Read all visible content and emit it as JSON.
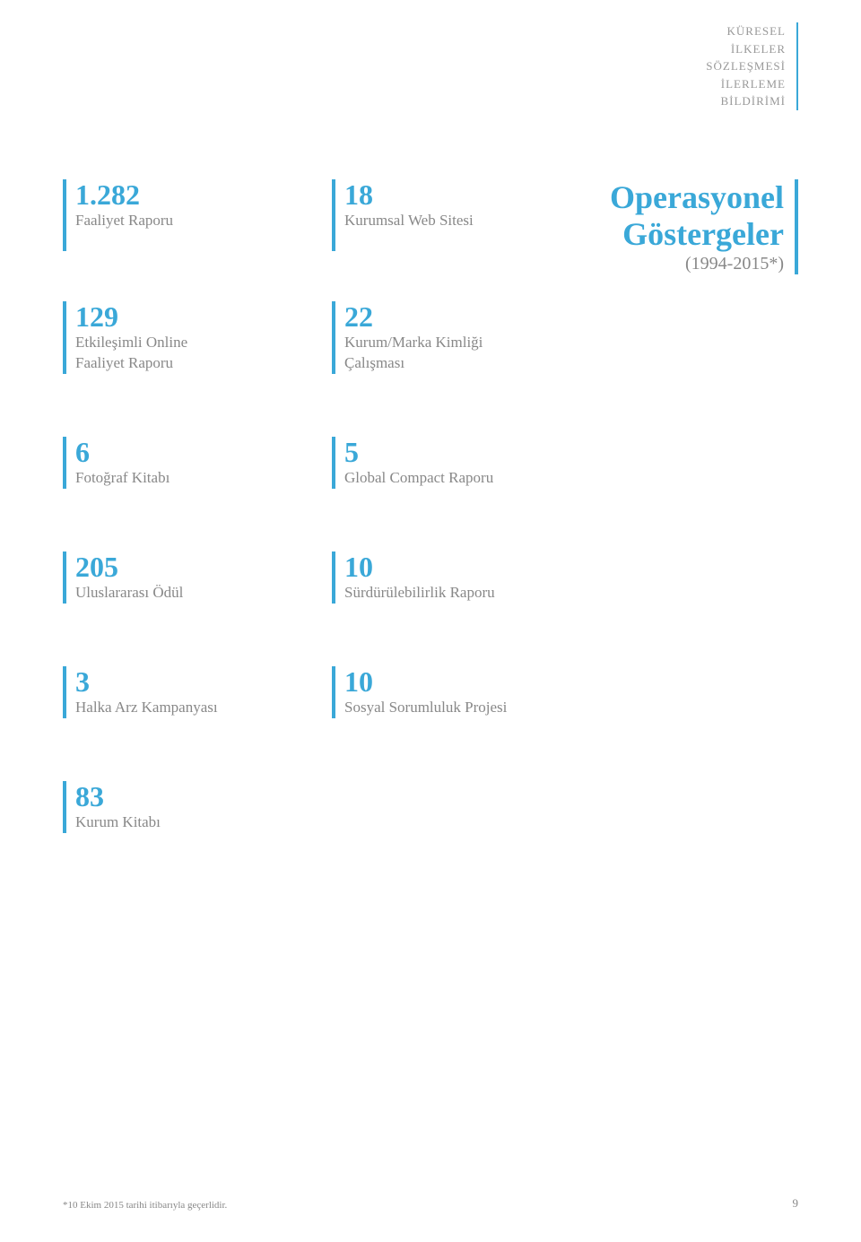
{
  "colors": {
    "accent": "#3aa8d8",
    "text_muted": "#999999",
    "text_label": "#888888"
  },
  "header": {
    "line1": "KÜRESEL",
    "line2": "İLKELER",
    "line3": "SÖZLEŞMESİ",
    "line4": "İLERLEME",
    "line5": "BİLDİRİMİ"
  },
  "title": {
    "line1": "Operasyonel",
    "line2": "Göstergeler",
    "sub": "(1994-2015*)"
  },
  "stats": {
    "r1c1_num": "1.282",
    "r1c1_label": "Faaliyet Raporu",
    "r1c2_num": "18",
    "r1c2_label": "Kurumsal Web Sitesi",
    "r2c1_num": "129",
    "r2c1_label1": "Etkileşimli Online",
    "r2c1_label2": "Faaliyet Raporu",
    "r2c2_num": "22",
    "r2c2_label1": "Kurum/Marka Kimliği",
    "r2c2_label2": "Çalışması",
    "r3c1_num": "6",
    "r3c1_label": "Fotoğraf Kitabı",
    "r3c2_num": "5",
    "r3c2_label": "Global Compact Raporu",
    "r4c1_num": "205",
    "r4c1_label": "Uluslararası Ödül",
    "r4c2_num": "10",
    "r4c2_label": "Sürdürülebilirlik Raporu",
    "r5c1_num": "3",
    "r5c1_label": "Halka Arz Kampanyası",
    "r5c2_num": "10",
    "r5c2_label": "Sosyal Sorumluluk Projesi",
    "r6c1_num": "83",
    "r6c1_label": "Kurum Kitabı"
  },
  "footnote": "*10 Ekim 2015 tarihi itibarıyla geçerlidir.",
  "page_number": "9"
}
